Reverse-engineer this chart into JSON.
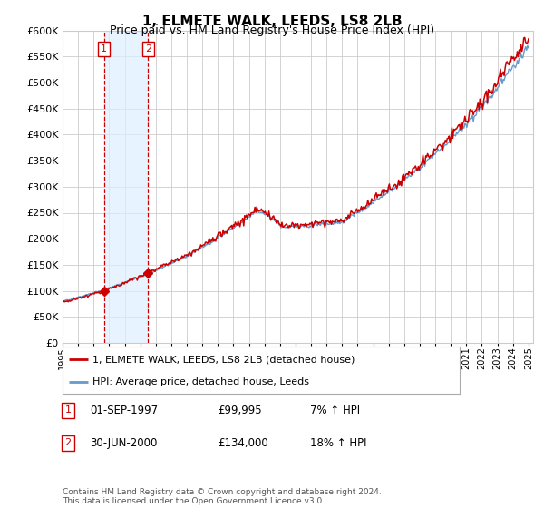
{
  "title": "1, ELMETE WALK, LEEDS, LS8 2LB",
  "subtitle": "Price paid vs. HM Land Registry's House Price Index (HPI)",
  "legend_label_red": "1, ELMETE WALK, LEEDS, LS8 2LB (detached house)",
  "legend_label_blue": "HPI: Average price, detached house, Leeds",
  "table_rows": [
    {
      "num": "1",
      "date": "01-SEP-1997",
      "price": "£99,995",
      "change": "7% ↑ HPI"
    },
    {
      "num": "2",
      "date": "30-JUN-2000",
      "price": "£134,000",
      "change": "18% ↑ HPI"
    }
  ],
  "footnote": "Contains HM Land Registry data © Crown copyright and database right 2024.\nThis data is licensed under the Open Government Licence v3.0.",
  "ylim": [
    0,
    600000
  ],
  "yticks": [
    0,
    50000,
    100000,
    150000,
    200000,
    250000,
    300000,
    350000,
    400000,
    450000,
    500000,
    550000,
    600000
  ],
  "sale1_year": 1997.67,
  "sale1_price": 99995,
  "sale2_year": 2000.5,
  "sale2_price": 134000,
  "red_color": "#cc0000",
  "blue_color": "#6699cc",
  "vline_color": "#cc0000",
  "shade_color": "#ddeeff",
  "background_color": "#ffffff",
  "grid_color": "#cccccc",
  "xmin": 1995,
  "xmax": 2025
}
